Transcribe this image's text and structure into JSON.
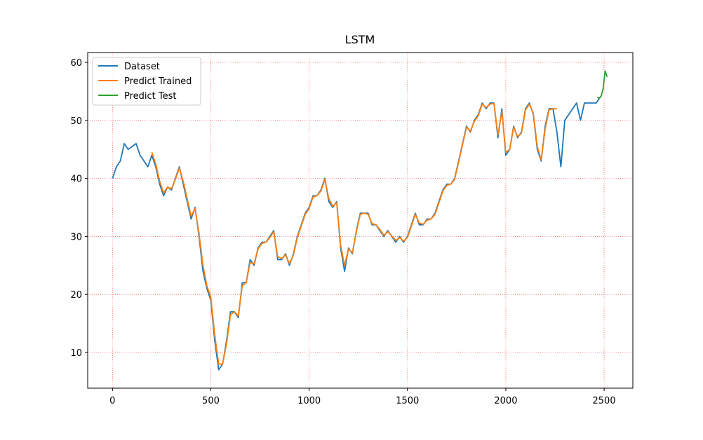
{
  "chart_data": {
    "type": "line",
    "title": "LSTM",
    "xlim": [
      -126,
      2646
    ],
    "ylim": [
      3.84,
      61.69
    ],
    "xticks": [
      0,
      500,
      1000,
      1500,
      2000,
      2500
    ],
    "yticks": [
      10,
      20,
      30,
      40,
      50,
      60
    ],
    "grid": true,
    "grid_color": "#ff0000",
    "legend": "upper left",
    "series": [
      {
        "name": "Dataset",
        "color": "#1f77b4",
        "x": [
          0,
          20,
          40,
          60,
          80,
          100,
          120,
          140,
          160,
          180,
          200,
          220,
          240,
          260,
          280,
          300,
          320,
          340,
          360,
          380,
          400,
          420,
          440,
          460,
          480,
          500,
          520,
          540,
          560,
          580,
          600,
          620,
          640,
          660,
          680,
          700,
          720,
          740,
          760,
          780,
          800,
          820,
          840,
          860,
          880,
          900,
          920,
          940,
          960,
          980,
          1000,
          1020,
          1040,
          1060,
          1080,
          1100,
          1120,
          1140,
          1160,
          1180,
          1200,
          1220,
          1240,
          1260,
          1280,
          1300,
          1320,
          1340,
          1360,
          1380,
          1400,
          1420,
          1440,
          1460,
          1480,
          1500,
          1520,
          1540,
          1560,
          1580,
          1600,
          1620,
          1640,
          1660,
          1680,
          1700,
          1720,
          1740,
          1760,
          1780,
          1800,
          1820,
          1840,
          1860,
          1880,
          1900,
          1920,
          1940,
          1960,
          1980,
          2000,
          2020,
          2040,
          2060,
          2080,
          2100,
          2120,
          2140,
          2160,
          2180,
          2200,
          2220,
          2240,
          2260,
          2280,
          2300,
          2320,
          2340,
          2360,
          2380,
          2400,
          2420,
          2440,
          2460,
          2480
        ],
        "values": [
          40,
          42,
          43,
          46,
          45,
          45.5,
          46,
          44,
          43,
          42,
          44,
          42,
          39,
          37,
          38.5,
          38,
          40,
          42,
          39,
          36,
          33,
          35,
          30,
          24,
          21,
          19,
          12,
          7,
          8,
          12,
          17,
          17,
          16,
          22,
          22,
          26,
          25,
          28,
          29,
          29,
          30,
          31,
          26,
          26,
          27,
          25,
          27,
          30,
          32,
          34,
          35,
          37,
          37,
          38,
          40,
          36,
          35,
          36,
          28,
          24,
          28,
          27,
          31,
          34,
          34,
          34,
          32,
          32,
          31,
          30,
          31,
          30,
          29,
          30,
          29,
          30,
          32,
          34,
          32,
          32,
          33,
          33,
          34,
          36,
          38,
          39,
          39,
          40,
          43,
          46,
          49,
          48,
          50,
          51,
          53,
          52,
          53,
          53,
          47,
          52,
          44,
          45,
          49,
          47,
          48,
          52,
          53,
          51,
          45,
          43,
          49,
          52,
          52,
          48,
          42,
          50,
          51,
          52,
          53,
          50,
          53,
          53,
          53,
          53,
          54
        ]
      },
      {
        "name": "Predict Trained",
        "color": "#ff7f0e",
        "x": [
          200,
          220,
          240,
          260,
          280,
          300,
          320,
          340,
          360,
          380,
          400,
          420,
          440,
          460,
          480,
          500,
          520,
          540,
          560,
          580,
          600,
          620,
          640,
          660,
          680,
          700,
          720,
          740,
          760,
          780,
          800,
          820,
          840,
          860,
          880,
          900,
          920,
          940,
          960,
          980,
          1000,
          1020,
          1040,
          1060,
          1080,
          1100,
          1120,
          1140,
          1160,
          1180,
          1200,
          1220,
          1240,
          1260,
          1280,
          1300,
          1320,
          1340,
          1360,
          1380,
          1400,
          1420,
          1440,
          1460,
          1480,
          1500,
          1520,
          1540,
          1560,
          1580,
          1600,
          1620,
          1640,
          1660,
          1680,
          1700,
          1720,
          1740,
          1760,
          1780,
          1800,
          1820,
          1840,
          1860,
          1880,
          1900,
          1920,
          1940,
          1960,
          1980,
          2000,
          2020,
          2040,
          2060,
          2080,
          2100,
          2120,
          2140,
          2160,
          2180,
          2200,
          2220,
          2240,
          2260
        ],
        "values": [
          44.5,
          42.5,
          39.5,
          37.5,
          38.5,
          38.2,
          39.8,
          41.8,
          39.5,
          36.5,
          33.5,
          34.8,
          30.5,
          25,
          21.5,
          19.5,
          13,
          8,
          8,
          11.5,
          16.5,
          17,
          16.3,
          21.5,
          22,
          25.5,
          25.3,
          27.8,
          28.8,
          29,
          29.8,
          30.8,
          26.5,
          26.2,
          26.8,
          25.3,
          26.8,
          29.8,
          31.8,
          33.8,
          34.8,
          36.8,
          37,
          37.8,
          39.8,
          36.5,
          35.2,
          35.8,
          28.5,
          25,
          27.8,
          27.2,
          30.8,
          33.8,
          34,
          33.8,
          32.2,
          32,
          31.2,
          30.2,
          30.8,
          30.1,
          29.3,
          29.8,
          29.2,
          29.8,
          31.8,
          33.8,
          32.3,
          32.1,
          32.8,
          33,
          33.8,
          35.8,
          37.8,
          38.8,
          39,
          39.8,
          42.8,
          45.8,
          48.8,
          48.2,
          49.8,
          50.8,
          52.8,
          52.2,
          52.8,
          52.9,
          47.5,
          51.5,
          44.5,
          45,
          48.8,
          47.2,
          47.8,
          51.8,
          52.8,
          51.2,
          45.5,
          43.2,
          48.5,
          51.8,
          52,
          52
        ]
      },
      {
        "name": "Predict Test",
        "color": "#2ca02c",
        "x": [
          2465,
          2475,
          2485,
          2495,
          2505,
          2515
        ],
        "values": [
          54,
          53.8,
          54.2,
          55.5,
          58.5,
          57.5
        ]
      }
    ]
  }
}
